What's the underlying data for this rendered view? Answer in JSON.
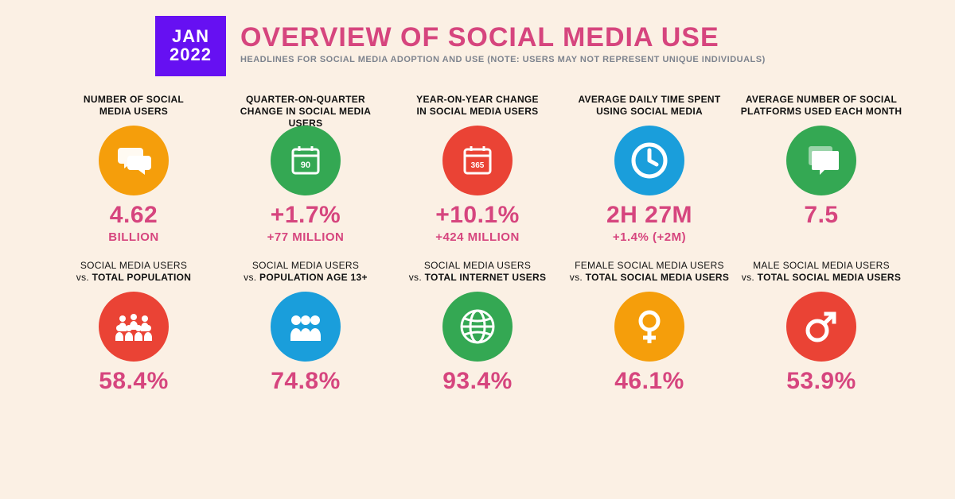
{
  "colors": {
    "background": "#fbf0e4",
    "accent_pink": "#d6457e",
    "badge_purple": "#6610f2",
    "orange": "#f59e0b",
    "green": "#34a853",
    "red": "#ea4335",
    "blue": "#1a9edb",
    "text_black": "#111111",
    "text_grey": "#7d838e",
    "icon_white": "#ffffff"
  },
  "header": {
    "date_line1": "JAN",
    "date_line2": "2022",
    "title": "OVERVIEW OF SOCIAL MEDIA USE",
    "subtitle": "HEADLINES FOR SOCIAL MEDIA ADOPTION AND USE (NOTE: USERS MAY NOT REPRESENT UNIQUE INDIVIDUALS)"
  },
  "row1": [
    {
      "label_html": "NUMBER OF SOCIAL<br>MEDIA USERS",
      "icon": "chat",
      "icon_bg": "#f59e0b",
      "value": "4.62",
      "sub": "BILLION"
    },
    {
      "label_html": "QUARTER-ON-QUARTER<br>CHANGE IN SOCIAL MEDIA USERS",
      "icon": "cal90",
      "icon_bg": "#34a853",
      "value": "+1.7%",
      "sub": "+77 MILLION"
    },
    {
      "label_html": "YEAR-ON-YEAR CHANGE<br>IN SOCIAL MEDIA USERS",
      "icon": "cal365",
      "icon_bg": "#ea4335",
      "value": "+10.1%",
      "sub": "+424 MILLION"
    },
    {
      "label_html": "AVERAGE DAILY TIME SPENT<br>USING SOCIAL MEDIA",
      "icon": "clock",
      "icon_bg": "#1a9edb",
      "value": "2H 27M",
      "sub": "+1.4% (+2M)"
    },
    {
      "label_html": "AVERAGE NUMBER OF SOCIAL<br>PLATFORMS USED EACH MONTH",
      "icon": "stackchat",
      "icon_bg": "#34a853",
      "value": "7.5",
      "sub": ""
    }
  ],
  "row2": [
    {
      "label_html": "<span class='thin'>SOCIAL MEDIA USERS</span><br><span class='thin'>vs.</span> TOTAL POPULATION",
      "icon": "crowd",
      "icon_bg": "#ea4335",
      "value": "58.4%"
    },
    {
      "label_html": "<span class='thin'>SOCIAL MEDIA USERS</span><br><span class='thin'>vs.</span> POPULATION AGE 13+",
      "icon": "people3",
      "icon_bg": "#1a9edb",
      "value": "74.8%"
    },
    {
      "label_html": "<span class='thin'>SOCIAL MEDIA USERS</span><br><span class='thin'>vs.</span> TOTAL INTERNET USERS",
      "icon": "globe",
      "icon_bg": "#34a853",
      "value": "93.4%"
    },
    {
      "label_html": "<span class='thin'>FEMALE SOCIAL MEDIA USERS</span><br><span class='thin'>vs.</span> TOTAL SOCIAL MEDIA USERS",
      "icon": "female",
      "icon_bg": "#f59e0b",
      "value": "46.1%"
    },
    {
      "label_html": "<span class='thin'>MALE SOCIAL MEDIA USERS</span><br><span class='thin'>vs.</span> TOTAL SOCIAL MEDIA USERS",
      "icon": "male",
      "icon_bg": "#ea4335",
      "value": "53.9%"
    }
  ]
}
